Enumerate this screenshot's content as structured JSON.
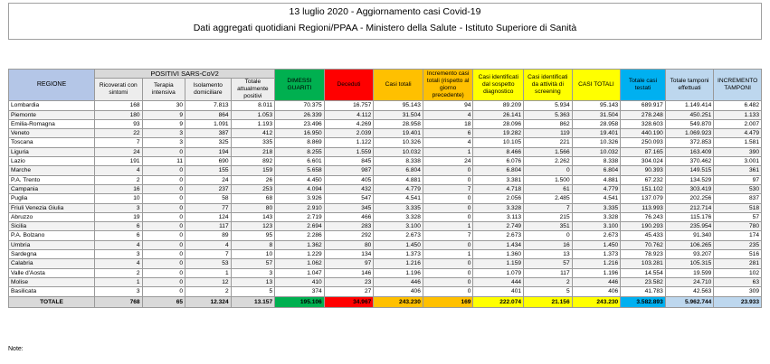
{
  "header": {
    "title": "13 luglio 2020 - Aggiornamento casi Covid-19",
    "subtitle": "Dati aggregati quotidiani Regioni/PPAA - Ministero della Salute - Istituto Superiore di Sanità"
  },
  "table": {
    "region_header": "REGIONE",
    "positivi_group": "POSITIVI SARS-CoV2",
    "columns": [
      "Ricoverati con sintomi",
      "Terapia intensiva",
      "Isolamento domiciliare",
      "Totale attualmente positivi",
      "DIMESSI GUARITI",
      "Deceduti",
      "Casi totali",
      "Incremento casi totali (rispetto al giorno precedente)",
      "Casi identificati dal sospetto diagnostico",
      "Casi identificati da attività di screening",
      "CASI TOTALI",
      "Totale casi testati",
      "Totale tamponi effettuati",
      "INCREMENTO TAMPONI"
    ],
    "rows": [
      {
        "region": "Lombardia",
        "values": [
          "168",
          "30",
          "7.813",
          "8.011",
          "70.375",
          "16.757",
          "95.143",
          "94",
          "89.209",
          "5.934",
          "95.143",
          "689.917",
          "1.149.414",
          "6.482"
        ]
      },
      {
        "region": "Piemonte",
        "values": [
          "180",
          "9",
          "864",
          "1.053",
          "26.339",
          "4.112",
          "31.504",
          "4",
          "26.141",
          "5.363",
          "31.504",
          "278.248",
          "450.251",
          "1.133"
        ]
      },
      {
        "region": "Emilia-Romagna",
        "values": [
          "93",
          "9",
          "1.091",
          "1.193",
          "23.496",
          "4.269",
          "28.958",
          "18",
          "28.096",
          "862",
          "28.958",
          "328.603",
          "549.870",
          "2.007"
        ]
      },
      {
        "region": "Veneto",
        "values": [
          "22",
          "3",
          "387",
          "412",
          "16.950",
          "2.039",
          "19.401",
          "6",
          "19.282",
          "119",
          "19.401",
          "440.190",
          "1.069.923",
          "4.479"
        ]
      },
      {
        "region": "Toscana",
        "values": [
          "7",
          "3",
          "325",
          "335",
          "8.869",
          "1.122",
          "10.326",
          "4",
          "10.105",
          "221",
          "10.326",
          "250.093",
          "372.853",
          "1.581"
        ]
      },
      {
        "region": "Liguria",
        "values": [
          "24",
          "0",
          "194",
          "218",
          "8.255",
          "1.559",
          "10.032",
          "1",
          "8.466",
          "1.566",
          "10.032",
          "87.165",
          "163.409",
          "390"
        ]
      },
      {
        "region": "Lazio",
        "values": [
          "191",
          "11",
          "690",
          "892",
          "6.601",
          "845",
          "8.338",
          "24",
          "6.076",
          "2.262",
          "8.338",
          "304.024",
          "370.462",
          "3.001"
        ]
      },
      {
        "region": "Marche",
        "values": [
          "4",
          "0",
          "155",
          "159",
          "5.658",
          "987",
          "6.804",
          "0",
          "6.804",
          "0",
          "6.804",
          "90.393",
          "149.515",
          "361"
        ]
      },
      {
        "region": "P.A. Trento",
        "values": [
          "2",
          "0",
          "24",
          "26",
          "4.450",
          "405",
          "4.881",
          "0",
          "3.381",
          "1.500",
          "4.881",
          "67.232",
          "134.529",
          "97"
        ]
      },
      {
        "region": "Campania",
        "values": [
          "16",
          "0",
          "237",
          "253",
          "4.094",
          "432",
          "4.779",
          "7",
          "4.718",
          "61",
          "4.779",
          "151.102",
          "303.419",
          "530"
        ]
      },
      {
        "region": "Puglia",
        "values": [
          "10",
          "0",
          "58",
          "68",
          "3.926",
          "547",
          "4.541",
          "0",
          "2.056",
          "2.485",
          "4.541",
          "137.079",
          "202.256",
          "837"
        ]
      },
      {
        "region": "Friuli Venezia Giulia",
        "values": [
          "3",
          "0",
          "77",
          "80",
          "2.910",
          "345",
          "3.335",
          "0",
          "3.328",
          "7",
          "3.335",
          "113.993",
          "212.714",
          "518"
        ]
      },
      {
        "region": "Abruzzo",
        "values": [
          "19",
          "0",
          "124",
          "143",
          "2.719",
          "466",
          "3.328",
          "0",
          "3.113",
          "215",
          "3.328",
          "76.243",
          "115.176",
          "57"
        ]
      },
      {
        "region": "Sicilia",
        "values": [
          "6",
          "0",
          "117",
          "123",
          "2.694",
          "283",
          "3.100",
          "1",
          "2.749",
          "351",
          "3.100",
          "190.293",
          "235.954",
          "780"
        ]
      },
      {
        "region": "P.A. Bolzano",
        "values": [
          "6",
          "0",
          "89",
          "95",
          "2.286",
          "292",
          "2.673",
          "7",
          "2.673",
          "0",
          "2.673",
          "45.433",
          "91.340",
          "174"
        ]
      },
      {
        "region": "Umbria",
        "values": [
          "4",
          "0",
          "4",
          "8",
          "1.362",
          "80",
          "1.450",
          "0",
          "1.434",
          "16",
          "1.450",
          "70.762",
          "106.265",
          "235"
        ]
      },
      {
        "region": "Sardegna",
        "values": [
          "3",
          "0",
          "7",
          "10",
          "1.229",
          "134",
          "1.373",
          "1",
          "1.360",
          "13",
          "1.373",
          "78.923",
          "93.207",
          "516"
        ]
      },
      {
        "region": "Calabria",
        "values": [
          "4",
          "0",
          "53",
          "57",
          "1.062",
          "97",
          "1.216",
          "0",
          "1.159",
          "57",
          "1.216",
          "103.281",
          "105.315",
          "281"
        ]
      },
      {
        "region": "Valle d'Aosta",
        "values": [
          "2",
          "0",
          "1",
          "3",
          "1.047",
          "146",
          "1.196",
          "0",
          "1.079",
          "117",
          "1.196",
          "14.554",
          "19.599",
          "102"
        ]
      },
      {
        "region": "Molise",
        "values": [
          "1",
          "0",
          "12",
          "13",
          "410",
          "23",
          "446",
          "0",
          "444",
          "2",
          "446",
          "23.582",
          "24.710",
          "63"
        ]
      },
      {
        "region": "Basilicata",
        "values": [
          "3",
          "0",
          "2",
          "5",
          "374",
          "27",
          "406",
          "0",
          "401",
          "5",
          "406",
          "41.783",
          "42.563",
          "309"
        ]
      }
    ],
    "total": {
      "label": "TOTALE",
      "values": [
        "768",
        "65",
        "12.324",
        "13.157",
        "195.106",
        "34.967",
        "243.230",
        "169",
        "222.074",
        "21.156",
        "243.230",
        "3.582.893",
        "5.962.744",
        "23.933"
      ]
    }
  },
  "note": "Note:",
  "colors": {
    "dimessi": "#00b050",
    "deceduti": "#ff0000",
    "casi_totali": "#ffc000",
    "screening": "#ffff00",
    "testati": "#00b0f0",
    "tamponi": "#bdd7ee"
  }
}
